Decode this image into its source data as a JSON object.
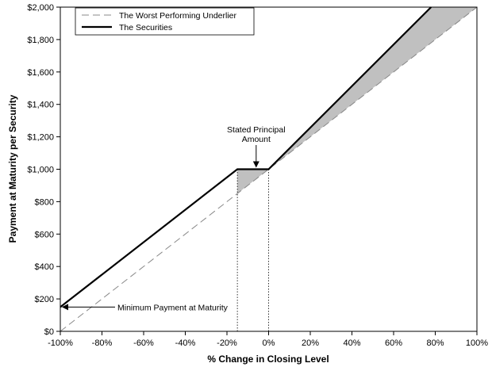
{
  "chart_data": {
    "type": "line",
    "xlabel": "% Change in Closing Level",
    "ylabel": "Payment at Maturity per Security",
    "xlim": [
      -100,
      100
    ],
    "ylim": [
      0,
      2000
    ],
    "grid": false,
    "legend_position": "top-left",
    "x_ticks": [
      {
        "value": -100,
        "label": "-100%"
      },
      {
        "value": -80,
        "label": "-80%"
      },
      {
        "value": -60,
        "label": "-60%"
      },
      {
        "value": -40,
        "label": "-40%"
      },
      {
        "value": -20,
        "label": "-20%"
      },
      {
        "value": 0,
        "label": "0%"
      },
      {
        "value": 20,
        "label": "20%"
      },
      {
        "value": 40,
        "label": "40%"
      },
      {
        "value": 60,
        "label": "60%"
      },
      {
        "value": 80,
        "label": "80%"
      },
      {
        "value": 100,
        "label": "100%"
      }
    ],
    "y_ticks": [
      {
        "value": 0,
        "label": "$0"
      },
      {
        "value": 200,
        "label": "$200"
      },
      {
        "value": 400,
        "label": "$400"
      },
      {
        "value": 600,
        "label": "$600"
      },
      {
        "value": 800,
        "label": "$800"
      },
      {
        "value": 1000,
        "label": "$1,000"
      },
      {
        "value": 1200,
        "label": "$1,200"
      },
      {
        "value": 1400,
        "label": "$1,400"
      },
      {
        "value": 1600,
        "label": "$1,600"
      },
      {
        "value": 1800,
        "label": "$1,800"
      },
      {
        "value": 2000,
        "label": "$2,000"
      }
    ],
    "series": [
      {
        "name": "The Worst Performing Underlier",
        "style": "dashed",
        "color": "#888888",
        "x": [
          -100,
          100
        ],
        "y": [
          0,
          2000
        ]
      },
      {
        "name": "The Securities",
        "style": "solid",
        "color": "#000000",
        "x": [
          -100,
          -15,
          0,
          78
        ],
        "y": [
          150,
          1000,
          1000,
          2000
        ]
      }
    ],
    "shaded_regions": [
      {
        "x": [
          -15,
          0,
          -15
        ],
        "y": [
          1000,
          1000,
          850
        ],
        "color": "#c0c0c0"
      },
      {
        "x": [
          0,
          78,
          100
        ],
        "y": [
          1000,
          2000,
          2000
        ],
        "color": "#c0c0c0"
      }
    ],
    "reference_lines": [
      {
        "x": -15,
        "y_to": 1000,
        "style": "dotted"
      },
      {
        "x": 0,
        "y_to": 1000,
        "style": "dotted"
      }
    ],
    "annotations": [
      {
        "lines": [
          "Stated Principal",
          "Amount"
        ],
        "points_to": {
          "x": -7.5,
          "y": 1000
        },
        "arrow": "down"
      },
      {
        "lines": [
          "Minimum Payment at Maturity"
        ],
        "points_to": {
          "x": -100,
          "y": 150
        },
        "arrow": "left"
      }
    ]
  }
}
